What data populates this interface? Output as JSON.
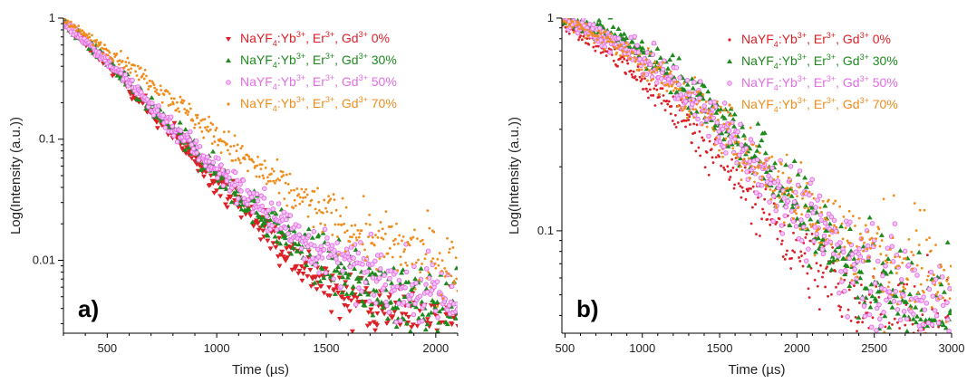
{
  "chart_data": [
    {
      "type": "scatter",
      "panel_label": "a)",
      "xlabel": "Time (µs)",
      "ylabel": "Log(Intensity (a.u.))",
      "xlim": [
        300,
        2100
      ],
      "ylim": [
        0.0025,
        1
      ],
      "y_scale": "log",
      "x_ticks": [
        500,
        1000,
        1500,
        2000
      ],
      "y_ticks": [
        1,
        0.1,
        0.01
      ],
      "y_tick_labels": [
        "1",
        "0.1",
        "0.01"
      ],
      "legend_position": "top-right",
      "series": [
        {
          "formula": "NaYF",
          "sub": "4",
          "yb": ":Yb",
          "er": ", Er",
          "gd": ", Gd",
          "plus": "3+",
          "pct": "0%",
          "color": "#dd1f26",
          "marker": "triangle-down",
          "decay": [
            [
              300,
              0.92
            ],
            [
              500,
              0.43
            ],
            [
              700,
              0.17
            ],
            [
              900,
              0.072
            ],
            [
              1100,
              0.03
            ],
            [
              1300,
              0.013
            ],
            [
              1500,
              0.0062
            ],
            [
              1700,
              0.0042
            ],
            [
              1900,
              0.0033
            ],
            [
              2100,
              0.003
            ]
          ]
        },
        {
          "formula": "NaYF",
          "sub": "4",
          "yb": ":Yb",
          "er": ", Er",
          "gd": ", Gd",
          "plus": "3+",
          "pct": "30%",
          "color": "#1e8a1e",
          "marker": "triangle-up",
          "decay": [
            [
              300,
              0.92
            ],
            [
              500,
              0.44
            ],
            [
              700,
              0.18
            ],
            [
              900,
              0.08
            ],
            [
              1100,
              0.035
            ],
            [
              1300,
              0.017
            ],
            [
              1500,
              0.0092
            ],
            [
              1700,
              0.006
            ],
            [
              1900,
              0.0045
            ],
            [
              2100,
              0.0038
            ]
          ]
        },
        {
          "formula": "NaYF",
          "sub": "4",
          "yb": ":Yb",
          "er": ", Er",
          "gd": ", Gd",
          "plus": "3+",
          "pct": "50%",
          "color": "#e46ce4",
          "marker": "circle-open",
          "decay": [
            [
              300,
              0.93
            ],
            [
              500,
              0.45
            ],
            [
              700,
              0.19
            ],
            [
              900,
              0.085
            ],
            [
              1100,
              0.039
            ],
            [
              1300,
              0.02
            ],
            [
              1500,
              0.011
            ],
            [
              1700,
              0.0075
            ],
            [
              1900,
              0.0055
            ],
            [
              2100,
              0.0045
            ]
          ]
        },
        {
          "formula": "NaYF",
          "sub": "4",
          "yb": ":Yb",
          "er": ", Er",
          "gd": ", Gd",
          "plus": "3+",
          "pct": "70%",
          "color": "#f08c1c",
          "marker": "dot",
          "decay": [
            [
              300,
              0.95
            ],
            [
              500,
              0.55
            ],
            [
              700,
              0.3
            ],
            [
              900,
              0.15
            ],
            [
              1100,
              0.075
            ],
            [
              1300,
              0.04
            ],
            [
              1500,
              0.024
            ],
            [
              1700,
              0.015
            ],
            [
              1900,
              0.011
            ],
            [
              2100,
              0.0085
            ]
          ]
        }
      ]
    },
    {
      "type": "scatter",
      "panel_label": "b)",
      "xlabel": "Time (µs)",
      "ylabel": "Log(Intensity (a.u.))",
      "xlim": [
        480,
        3000
      ],
      "ylim": [
        0.033,
        1
      ],
      "y_scale": "log",
      "x_ticks": [
        500,
        1000,
        1500,
        2000,
        2500,
        3000
      ],
      "y_ticks": [
        1,
        0.1
      ],
      "y_tick_labels": [
        "1",
        "0.1"
      ],
      "legend_position": "top-right",
      "series": [
        {
          "formula": "NaYF",
          "sub": "4",
          "yb": ":Yb",
          "er": ", Er",
          "gd": ", Gd",
          "plus": "3+",
          "pct": "0%",
          "color": "#dd1f26",
          "marker": "dot",
          "decay": [
            [
              500,
              0.96
            ],
            [
              800,
              0.68
            ],
            [
              1100,
              0.44
            ],
            [
              1400,
              0.27
            ],
            [
              1700,
              0.15
            ],
            [
              2000,
              0.085
            ],
            [
              2300,
              0.05
            ],
            [
              2600,
              0.035
            ],
            [
              2900,
              0.03
            ],
            [
              3000,
              0.028
            ]
          ]
        },
        {
          "formula": "NaYF",
          "sub": "4",
          "yb": ":Yb",
          "er": ", Er",
          "gd": ", Gd",
          "plus": "3+",
          "pct": "30%",
          "color": "#1e8a1e",
          "marker": "triangle-up",
          "decay": [
            [
              500,
              1.0
            ],
            [
              800,
              0.84
            ],
            [
              1100,
              0.62
            ],
            [
              1400,
              0.41
            ],
            [
              1700,
              0.24
            ],
            [
              2000,
              0.13
            ],
            [
              2300,
              0.075
            ],
            [
              2600,
              0.048
            ],
            [
              2900,
              0.038
            ],
            [
              3000,
              0.036
            ]
          ]
        },
        {
          "formula": "NaYF",
          "sub": "4",
          "yb": ":Yb",
          "er": ", Er",
          "gd": ", Gd",
          "plus": "3+",
          "pct": "50%",
          "color": "#e46ce4",
          "marker": "circle-open",
          "decay": [
            [
              500,
              0.98
            ],
            [
              800,
              0.78
            ],
            [
              1100,
              0.57
            ],
            [
              1400,
              0.37
            ],
            [
              1700,
              0.22
            ],
            [
              2000,
              0.13
            ],
            [
              2300,
              0.08
            ],
            [
              2600,
              0.056
            ],
            [
              2900,
              0.045
            ],
            [
              3000,
              0.043
            ]
          ]
        },
        {
          "formula": "NaYF",
          "sub": "4",
          "yb": ":Yb",
          "er": ", Er",
          "gd": ", Gd",
          "plus": "3+",
          "pct": "70%",
          "color": "#f08c1c",
          "marker": "dot",
          "decay": [
            [
              500,
              0.97
            ],
            [
              800,
              0.76
            ],
            [
              1100,
              0.55
            ],
            [
              1400,
              0.36
            ],
            [
              1700,
              0.22
            ],
            [
              2000,
              0.14
            ],
            [
              2300,
              0.095
            ],
            [
              2600,
              0.072
            ],
            [
              2900,
              0.06
            ],
            [
              3000,
              0.057
            ]
          ]
        }
      ]
    }
  ]
}
